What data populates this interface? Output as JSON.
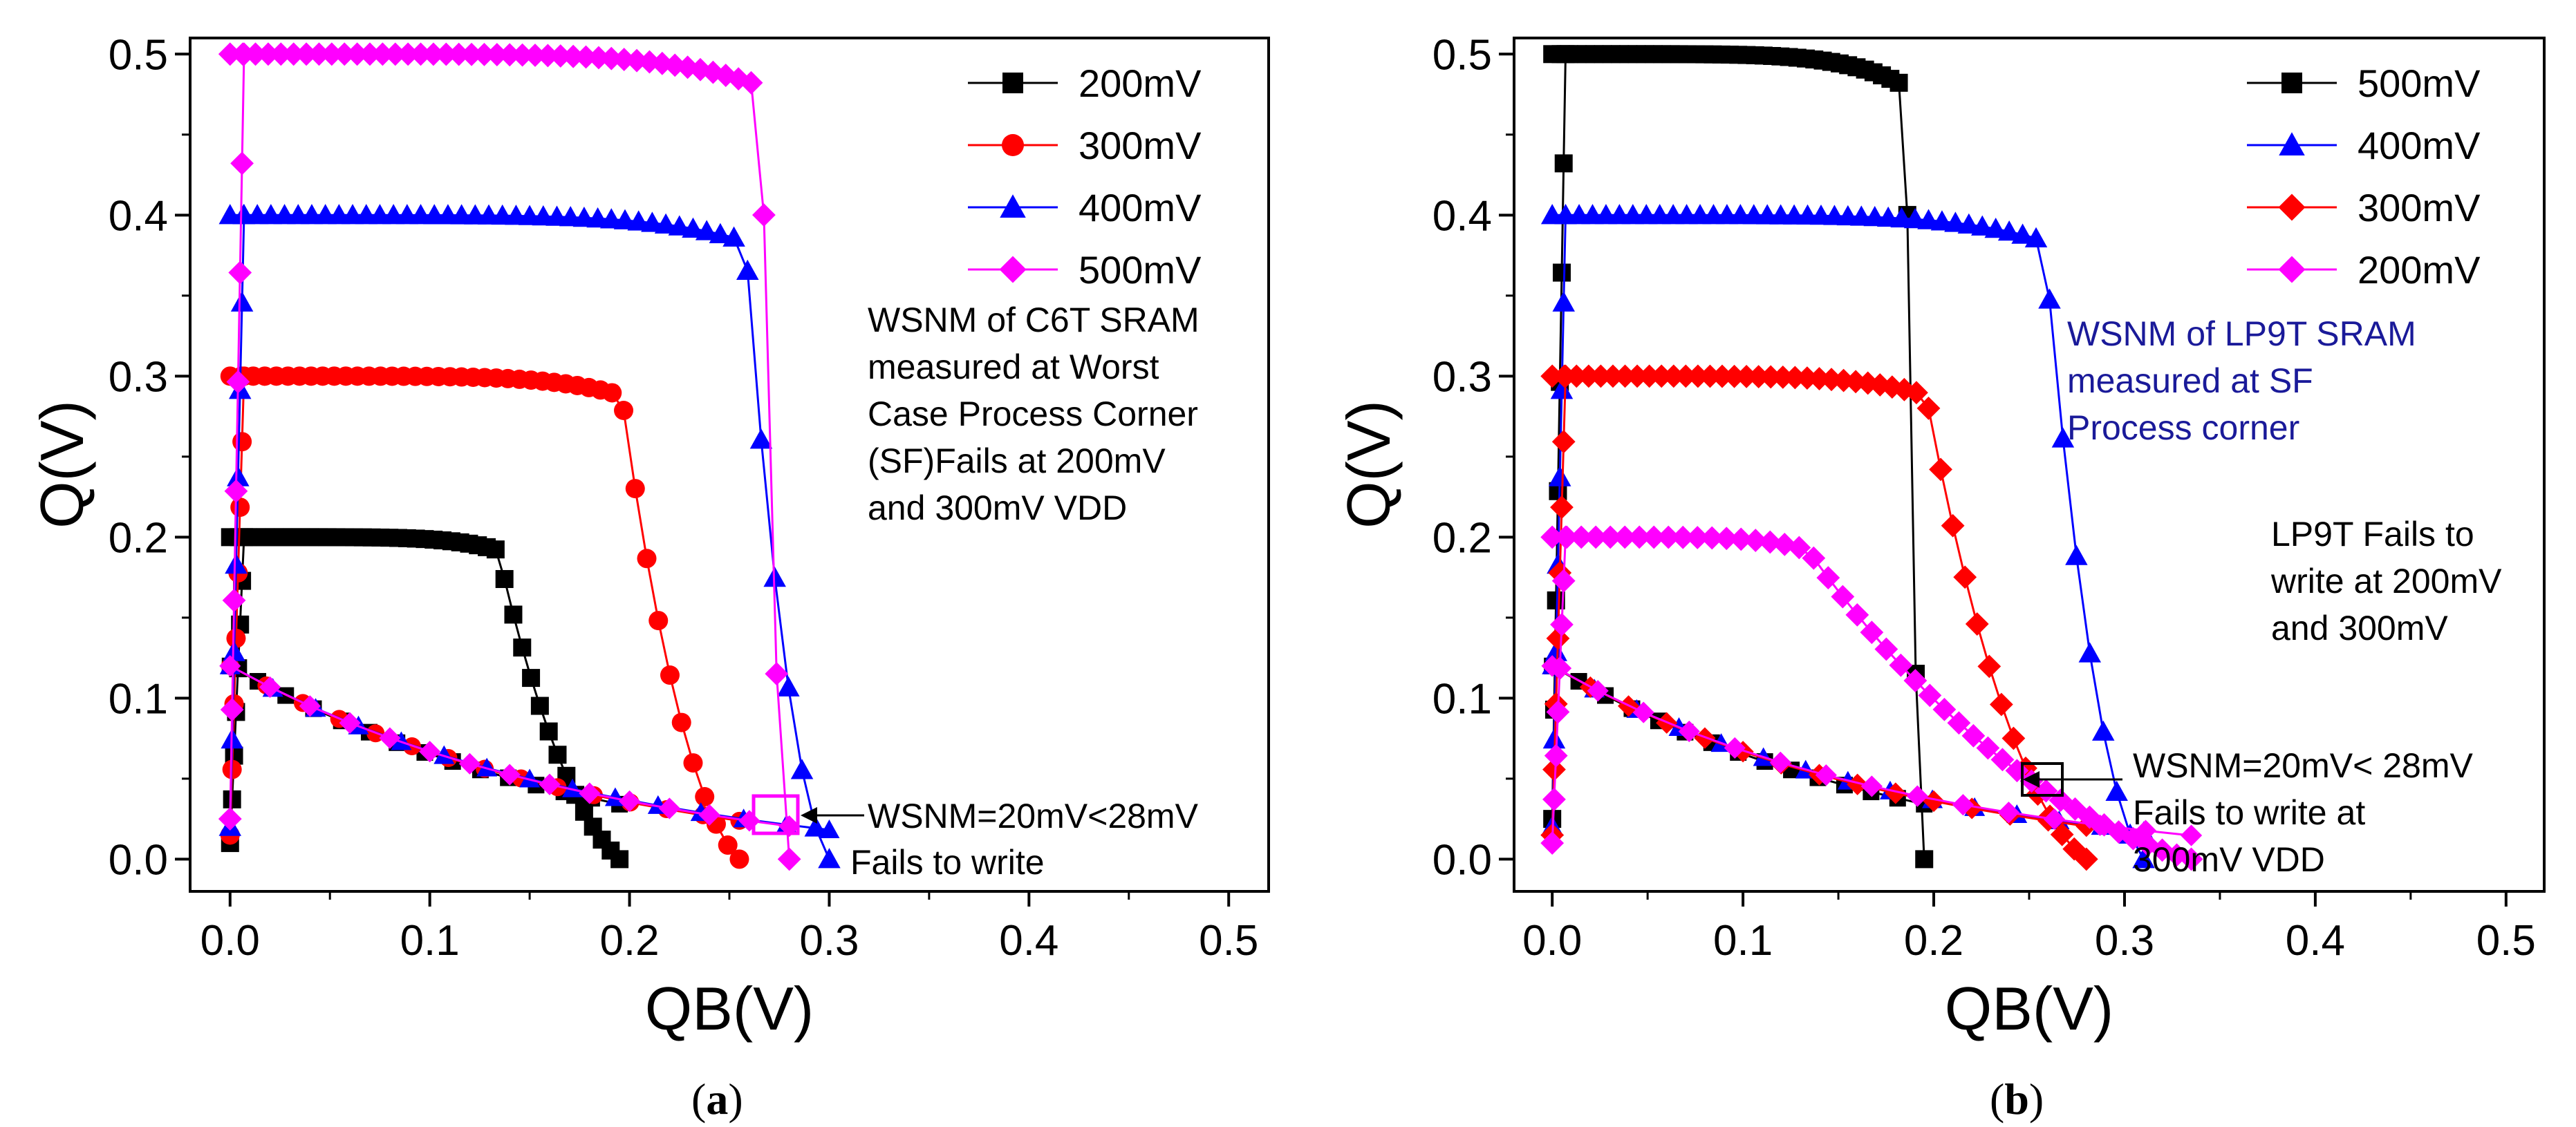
{
  "chart_data": [
    {
      "type": "line",
      "panel_label": "(a)",
      "panel_letter": "a",
      "xlabel": "QB(V)",
      "ylabel": "Q(V)",
      "xlim": [
        -0.02,
        0.52
      ],
      "ylim": [
        -0.02,
        0.51
      ],
      "x_ticks": [
        "0.0",
        "0.1",
        "0.2",
        "0.3",
        "0.4",
        "0.5"
      ],
      "y_ticks": [
        "0.0",
        "0.1",
        "0.2",
        "0.3",
        "0.4",
        "0.5"
      ],
      "legend_position": "top-right",
      "series": [
        {
          "name": "200mV",
          "color": "#000000",
          "marker": "square",
          "vdd": 0.2,
          "qb_end": 0.195
        },
        {
          "name": "300mV",
          "color": "#ff0000",
          "marker": "circle",
          "vdd": 0.3,
          "qb_end": 0.255
        },
        {
          "name": "400mV",
          "color": "#0000ff",
          "marker": "triangle",
          "vdd": 0.4,
          "qb_end": 0.3
        },
        {
          "name": "500mV",
          "color": "#ff00ff",
          "marker": "diamond",
          "vdd": 0.5,
          "qb_end": 0.28
        }
      ],
      "annotations": {
        "note_lines": [
          "WSNM of C6T SRAM",
          "measured at Worst",
          "Case Process Corner",
          "(SF)Fails at 200mV",
          "and 300mV VDD"
        ],
        "wsnm_line1": "WSNM=20mV<28mV",
        "wsnm_line2": "Fails to write"
      }
    },
    {
      "type": "line",
      "panel_label": "(b)",
      "panel_letter": "b",
      "xlabel": "QB(V)",
      "ylabel": "Q(V)",
      "xlim": [
        -0.02,
        0.52
      ],
      "ylim": [
        -0.02,
        0.51
      ],
      "x_ticks": [
        "0.0",
        "0.1",
        "0.2",
        "0.3",
        "0.4",
        "0.5"
      ],
      "y_ticks": [
        "0.0",
        "0.1",
        "0.2",
        "0.3",
        "0.4",
        "0.5"
      ],
      "legend_position": "top-right",
      "series": [
        {
          "name": "500mV",
          "color": "#000000",
          "marker": "square",
          "vdd": 0.5,
          "qb_end": 0.195
        },
        {
          "name": "400mV",
          "color": "#0000ff",
          "marker": "triangle",
          "vdd": 0.4,
          "qb_end": 0.31
        },
        {
          "name": "300mV",
          "color": "#ff0000",
          "marker": "diamond",
          "vdd": 0.3,
          "qb_end": 0.28
        },
        {
          "name": "200mV",
          "color": "#ff00ff",
          "marker": "diamond",
          "vdd": 0.2,
          "qb_end": 0.335
        }
      ],
      "annotations": {
        "note_lines": [
          "WSNM of LP9T SRAM",
          "measured at SF",
          "Process corner"
        ],
        "note2_lines": [
          "LP9T Fails to",
          "write at 200mV",
          "and 300mV"
        ],
        "wsnm_line1": "WSNM=20mV< 28mV",
        "wsnm_line2": "Fails to write at",
        "wsnm_line3": "300mV VDD"
      }
    }
  ]
}
